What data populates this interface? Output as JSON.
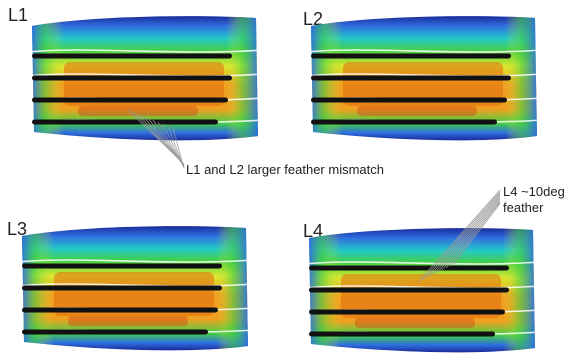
{
  "panels": [
    {
      "label": "L1"
    },
    {
      "label": "L2"
    },
    {
      "label": "L3"
    },
    {
      "label": "L4"
    }
  ],
  "annotations": {
    "mismatch": "L1 and L2 larger feather mismatch",
    "l4_line1": "L4 ~10deg",
    "l4_line2": "feather"
  },
  "colors": {
    "outer": "#1a2a9a",
    "blue": "#2f6fe0",
    "cyan": "#22c8c8",
    "green": "#44d044",
    "yellow": "#d9e830",
    "orange": "#f0a020",
    "deep_orange": "#e26e10",
    "red": "#c83010",
    "streamer": "#111111"
  }
}
